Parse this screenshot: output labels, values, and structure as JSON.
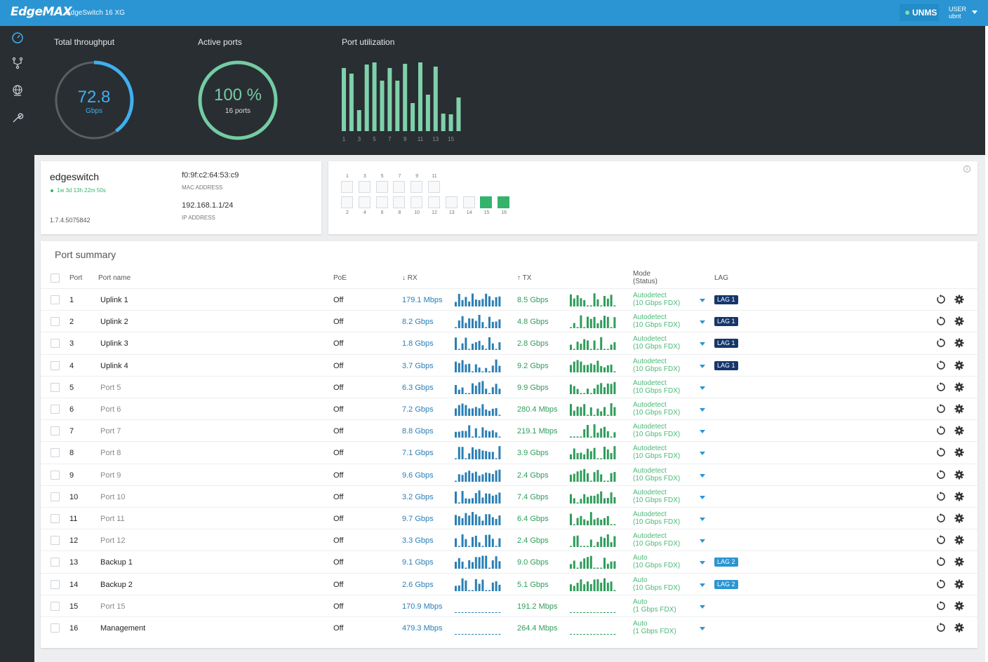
{
  "header": {
    "logo": "EdgeMAX",
    "device_title": "EdgeSwitch 16 XG",
    "unms_label": "UNMS",
    "user_label": "USER",
    "user_name": "ubnt"
  },
  "sidebar": {
    "items": [
      {
        "icon": "dashboard-icon"
      },
      {
        "icon": "vlan-icon"
      },
      {
        "icon": "globe-icon"
      },
      {
        "icon": "wrench-icon"
      }
    ]
  },
  "dashboard": {
    "throughput": {
      "label": "Total throughput",
      "value": "72.8",
      "unit": "Gbps",
      "fraction": 0.4
    },
    "active_ports": {
      "label": "Active ports",
      "value": "100 %",
      "detail": "16 ports",
      "fraction": 1.0
    },
    "utilization": {
      "label": "Port utilization",
      "tick_labels": [
        "1",
        "3",
        "5",
        "7",
        "9",
        "11",
        "13",
        "15"
      ],
      "values": [
        0.9,
        0.82,
        0.3,
        0.95,
        1.0,
        0.72,
        0.9,
        0.72,
        0.96,
        0.4,
        0.98,
        0.52,
        0.92,
        0.25,
        0.24,
        0.48
      ]
    }
  },
  "device": {
    "name": "edgeswitch",
    "uptime": "1w 3d 13h 22m 50s",
    "version": "1.7.4.5075842",
    "mac": "f0:9f:c2:64:53:c9",
    "mac_label": "MAC ADDRESS",
    "ip": "192.168.1.1/24",
    "ip_label": "IP ADDRESS"
  },
  "port_map": {
    "top_labels": [
      "1",
      "3",
      "5",
      "7",
      "9",
      "11"
    ],
    "bottom_labels": [
      "2",
      "4",
      "6",
      "8",
      "10",
      "12",
      "13",
      "14",
      "15",
      "16"
    ],
    "active": [
      "15",
      "16"
    ],
    "info_icon": "info-icon"
  },
  "summary": {
    "title": "Port summary",
    "headers": {
      "port": "Port",
      "name": "Port name",
      "poe": "PoE",
      "rx": "↓ RX",
      "tx": "↑ TX",
      "mode": "Mode",
      "mode_status": "(Status)",
      "lag": "LAG"
    },
    "rows": [
      {
        "port": "1",
        "name": "Uplink 1",
        "poe": "Off",
        "rx": "179.1 Mbps",
        "tx": "8.5 Gbps",
        "mode": "Autodetect",
        "status": "(10 Gbps FDX)",
        "lag": "LAG 1",
        "lag_style": "dark",
        "named": true
      },
      {
        "port": "2",
        "name": "Uplink 2",
        "poe": "Off",
        "rx": "8.2 Gbps",
        "tx": "4.8 Gbps",
        "mode": "Autodetect",
        "status": "(10 Gbps FDX)",
        "lag": "LAG 1",
        "lag_style": "dark",
        "named": true
      },
      {
        "port": "3",
        "name": "Uplink 3",
        "poe": "Off",
        "rx": "1.8 Gbps",
        "tx": "2.8 Gbps",
        "mode": "Autodetect",
        "status": "(10 Gbps FDX)",
        "lag": "LAG 1",
        "lag_style": "dark",
        "named": true
      },
      {
        "port": "4",
        "name": "Uplink 4",
        "poe": "Off",
        "rx": "3.7 Gbps",
        "tx": "9.2 Gbps",
        "mode": "Autodetect",
        "status": "(10 Gbps FDX)",
        "lag": "LAG 1",
        "lag_style": "dark",
        "named": true
      },
      {
        "port": "5",
        "name": "Port 5",
        "poe": "Off",
        "rx": "6.3 Gbps",
        "tx": "9.9 Gbps",
        "mode": "Autodetect",
        "status": "(10 Gbps FDX)",
        "lag": "",
        "lag_style": "",
        "named": false
      },
      {
        "port": "6",
        "name": "Port 6",
        "poe": "Off",
        "rx": "7.2 Gbps",
        "tx": "280.4 Mbps",
        "mode": "Autodetect",
        "status": "(10 Gbps FDX)",
        "lag": "",
        "lag_style": "",
        "named": false
      },
      {
        "port": "7",
        "name": "Port 7",
        "poe": "Off",
        "rx": "8.8 Gbps",
        "tx": "219.1 Mbps",
        "mode": "Autodetect",
        "status": "(10 Gbps FDX)",
        "lag": "",
        "lag_style": "",
        "named": false
      },
      {
        "port": "8",
        "name": "Port 8",
        "poe": "Off",
        "rx": "7.1 Gbps",
        "tx": "3.9 Gbps",
        "mode": "Autodetect",
        "status": "(10 Gbps FDX)",
        "lag": "",
        "lag_style": "",
        "named": false
      },
      {
        "port": "9",
        "name": "Port 9",
        "poe": "Off",
        "rx": "9.6 Gbps",
        "tx": "2.4 Gbps",
        "mode": "Autodetect",
        "status": "(10 Gbps FDX)",
        "lag": "",
        "lag_style": "",
        "named": false
      },
      {
        "port": "10",
        "name": "Port 10",
        "poe": "Off",
        "rx": "3.2 Gbps",
        "tx": "7.4 Gbps",
        "mode": "Autodetect",
        "status": "(10 Gbps FDX)",
        "lag": "",
        "lag_style": "",
        "named": false
      },
      {
        "port": "11",
        "name": "Port 11",
        "poe": "Off",
        "rx": "9.7 Gbps",
        "tx": "6.4 Gbps",
        "mode": "Autodetect",
        "status": "(10 Gbps FDX)",
        "lag": "",
        "lag_style": "",
        "named": false
      },
      {
        "port": "12",
        "name": "Port 12",
        "poe": "Off",
        "rx": "3.3 Gbps",
        "tx": "2.4 Gbps",
        "mode": "Autodetect",
        "status": "(10 Gbps FDX)",
        "lag": "",
        "lag_style": "",
        "named": false
      },
      {
        "port": "13",
        "name": "Backup 1",
        "poe": "Off",
        "rx": "9.1 Gbps",
        "tx": "9.0 Gbps",
        "mode": "Auto",
        "status": "(10 Gbps FDX)",
        "lag": "LAG 2",
        "lag_style": "light",
        "named": true
      },
      {
        "port": "14",
        "name": "Backup 2",
        "poe": "Off",
        "rx": "2.6 Gbps",
        "tx": "5.1 Gbps",
        "mode": "Auto",
        "status": "(10 Gbps FDX)",
        "lag": "LAG 2",
        "lag_style": "light",
        "named": true
      },
      {
        "port": "15",
        "name": "Port 15",
        "poe": "Off",
        "rx": "170.9 Mbps",
        "tx": "191.2 Mbps",
        "mode": "Auto",
        "status": "(1 Gbps FDX)",
        "lag": "",
        "lag_style": "",
        "named": false
      },
      {
        "port": "16",
        "name": "Management",
        "poe": "Off",
        "rx": "479.3 Mbps",
        "tx": "264.4 Mbps",
        "mode": "Auto",
        "status": "(1 Gbps FDX)",
        "lag": "",
        "lag_style": "",
        "named": true
      }
    ]
  },
  "colors": {
    "topbar": "#2b95d3",
    "dark_bg": "#292e33",
    "rx_blue": "#2a7fb5",
    "tx_green": "#2f9d5b",
    "active_green": "#35b36c",
    "lag_dark": "#16366b",
    "util_bar": "#7fd1aa"
  }
}
